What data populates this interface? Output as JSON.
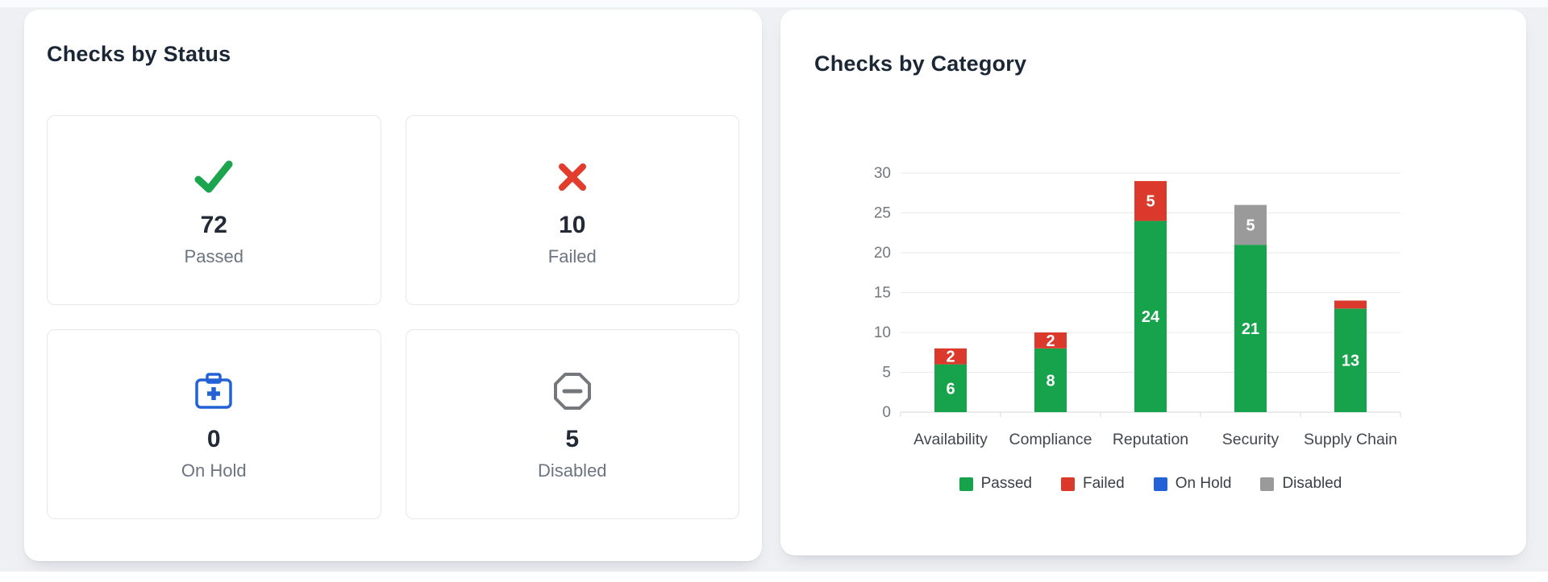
{
  "page": {
    "background": "#eef0f3"
  },
  "status_card": {
    "title": "Checks by Status",
    "tiles": [
      {
        "id": "passed",
        "icon": "check-icon",
        "value": "72",
        "label": "Passed",
        "color": "#1ca54e"
      },
      {
        "id": "failed",
        "icon": "x-icon",
        "value": "10",
        "label": "Failed",
        "color": "#e23c2d"
      },
      {
        "id": "on-hold",
        "icon": "medical-briefcase-icon",
        "value": "0",
        "label": "On Hold",
        "color": "#2262d6"
      },
      {
        "id": "disabled",
        "icon": "octagon-minus-icon",
        "value": "5",
        "label": "Disabled",
        "color": "#74777c"
      }
    ]
  },
  "category_card": {
    "title": "Checks by Category"
  },
  "chart_data": {
    "type": "bar",
    "stacked": true,
    "title": "Checks by Category",
    "categories": [
      "Availability",
      "Compliance",
      "Reputation",
      "Security",
      "Supply Chain"
    ],
    "series": [
      {
        "name": "Passed",
        "color": "#17a24c",
        "values": [
          6,
          8,
          24,
          21,
          13
        ]
      },
      {
        "name": "Failed",
        "color": "#db392b",
        "values": [
          2,
          2,
          5,
          0,
          1
        ]
      },
      {
        "name": "On Hold",
        "color": "#2262d6",
        "values": [
          0,
          0,
          0,
          0,
          0
        ]
      },
      {
        "name": "Disabled",
        "color": "#9a9a9a",
        "values": [
          0,
          0,
          0,
          5,
          0
        ]
      }
    ],
    "xlabel": "",
    "ylabel": "",
    "ylim": [
      0,
      30
    ],
    "ytick_step": 5,
    "grid": true,
    "legend_position": "bottom",
    "bar_label_min": 2,
    "bar_label_color": "#ffffff",
    "axis_text_color": "#74787d",
    "category_text_color": "#42474e",
    "gridline_color": "#e8e9eb",
    "axisline_color": "#d9dadd"
  }
}
